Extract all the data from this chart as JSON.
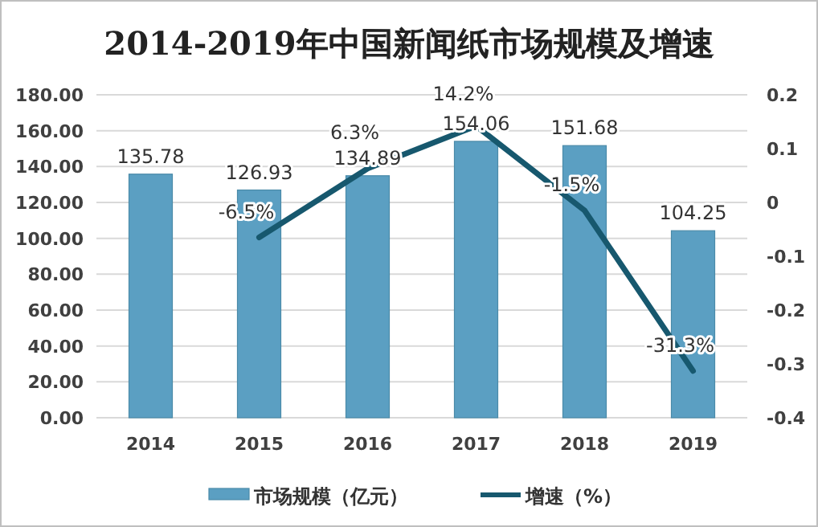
{
  "chart_data": {
    "type": "bar",
    "title": "2014-2019年中国新闻纸市场规模及增速",
    "categories": [
      "2014",
      "2015",
      "2016",
      "2017",
      "2018",
      "2019"
    ],
    "series": [
      {
        "name": "市场规模（亿元）",
        "color": "#5b9fc2",
        "values": [
          135.78,
          126.93,
          134.89,
          154.06,
          151.68,
          104.25
        ]
      },
      {
        "name": "增速（%）",
        "type": "line",
        "axis": "y2",
        "color": "#17586e",
        "values": [
          null,
          -0.065,
          0.063,
          0.142,
          -0.015,
          -0.313
        ],
        "value_labels": [
          null,
          "-6.5%",
          "6.3%",
          "14.2%",
          "-1.5%",
          "-31.3%"
        ]
      }
    ],
    "ylim": [
      0,
      180
    ],
    "yticks": [
      {
        "value": 0,
        "label": "0.00"
      },
      {
        "value": 20,
        "label": "20.00"
      },
      {
        "value": 40,
        "label": "40.00"
      },
      {
        "value": 60,
        "label": "60.00"
      },
      {
        "value": 80,
        "label": "80.00"
      },
      {
        "value": 100,
        "label": "100.00"
      },
      {
        "value": 120,
        "label": "120.00"
      },
      {
        "value": 140,
        "label": "140.00"
      },
      {
        "value": 160,
        "label": "160.00"
      },
      {
        "value": 180,
        "label": "180.00"
      }
    ],
    "y2lim": [
      -0.4,
      0.2
    ],
    "y2ticks": [
      -0.4,
      -0.3,
      -0.2,
      -0.1,
      0,
      0.1,
      0.2
    ],
    "data_labels": true,
    "grid": "y",
    "legend": "bottom",
    "marker": "none"
  }
}
